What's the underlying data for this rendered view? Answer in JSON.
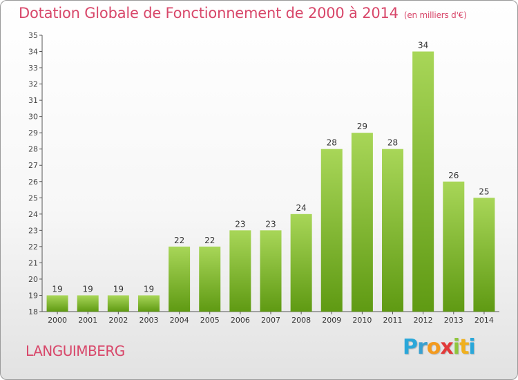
{
  "header": {
    "title": "Dotation Globale de Fonctionnement de 2000 à 2014",
    "subtitle": "(en milliers d'€)"
  },
  "footer": {
    "place": "LANGUIMBERG",
    "logo_letters": [
      "P",
      "r",
      "o",
      "x",
      "i",
      "t",
      "i"
    ]
  },
  "colors": {
    "title": "#d8476a",
    "bar_top": "#a8d658",
    "bar_bottom": "#5f9a13",
    "axis": "#555555"
  },
  "chart_data": {
    "type": "bar",
    "title": "Dotation Globale de Fonctionnement de 2000 à 2014",
    "subtitle": "(en milliers d'€)",
    "xlabel": "",
    "ylabel": "",
    "categories": [
      "2000",
      "2001",
      "2002",
      "2003",
      "2004",
      "2005",
      "2006",
      "2007",
      "2008",
      "2009",
      "2010",
      "2011",
      "2012",
      "2013",
      "2014"
    ],
    "values": [
      19,
      19,
      19,
      19,
      22,
      22,
      23,
      23,
      24,
      28,
      29,
      28,
      34,
      26,
      25
    ],
    "ylim": [
      18,
      35
    ],
    "yticks": [
      18,
      19,
      20,
      21,
      22,
      23,
      24,
      25,
      26,
      27,
      28,
      29,
      30,
      31,
      32,
      33,
      34,
      35
    ],
    "grid": false,
    "legend": "none"
  }
}
